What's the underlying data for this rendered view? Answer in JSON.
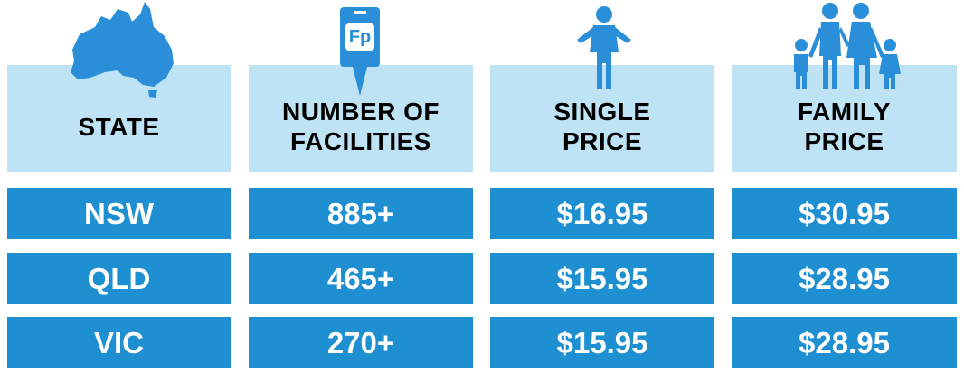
{
  "header": {
    "columns": [
      [
        "STATE"
      ],
      [
        "NUMBER OF",
        "FACILITIES"
      ],
      [
        "SINGLE",
        "PRICE"
      ],
      [
        "FAMILY",
        "PRICE"
      ]
    ]
  },
  "icons": {
    "facilities_label": "Fp"
  },
  "table": {
    "rows": [
      [
        "NSW",
        "885+",
        "$16.95",
        "$30.95"
      ],
      [
        "QLD",
        "465+",
        "$15.95",
        "$28.95"
      ],
      [
        "VIC",
        "270+",
        "$15.95",
        "$28.95"
      ]
    ]
  }
}
